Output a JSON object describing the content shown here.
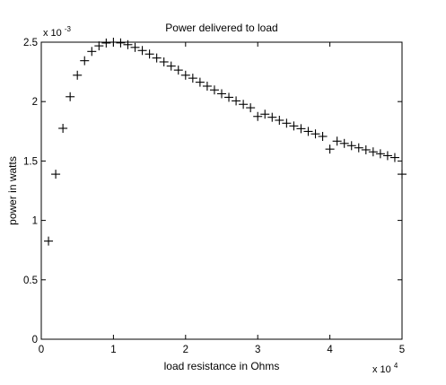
{
  "chart_data": {
    "type": "scatter",
    "title": "Power delivered to load",
    "xlabel": "load resistance in Ohms",
    "ylabel": "power in watts",
    "marker": "plus",
    "marker_color": "#000000",
    "grid": false,
    "legend": "none",
    "x_multiplier_base": "x 10",
    "x_multiplier_exp": "4",
    "y_multiplier_base": "x 10",
    "y_multiplier_exp": "-3",
    "xlim": [
      0,
      50000
    ],
    "ylim": [
      0,
      0.0025
    ],
    "xticks": [
      0,
      10000,
      20000,
      30000,
      40000,
      50000
    ],
    "xtick_labels": [
      "0",
      "1",
      "2",
      "3",
      "4",
      "5"
    ],
    "yticks": [
      0,
      0.0005,
      0.001,
      0.0015,
      0.002,
      0.0025
    ],
    "ytick_labels": [
      "0",
      "0.5",
      "1",
      "1.5",
      "2",
      "2.5"
    ],
    "series": [
      {
        "x": [
          1000,
          2000,
          3000,
          4000,
          5000,
          6000,
          7000,
          8000,
          9000,
          10000,
          11000,
          12000,
          13000,
          14000,
          15000,
          16000,
          17000,
          18000,
          19000,
          20000,
          21000,
          22000,
          23000,
          24000,
          25000,
          26000,
          27000,
          28000,
          29000,
          30000,
          31000,
          32000,
          33000,
          34000,
          35000,
          36000,
          37000,
          38000,
          39000,
          40000,
          41000,
          42000,
          43000,
          44000,
          45000,
          46000,
          47000,
          48000,
          49000,
          50000
        ],
        "y": [
          0.000826,
          0.001389,
          0.001775,
          0.002041,
          0.002222,
          0.002344,
          0.002422,
          0.002469,
          0.002493,
          0.0025,
          0.002494,
          0.002479,
          0.002456,
          0.00243,
          0.0024,
          0.002367,
          0.002334,
          0.002299,
          0.002265,
          0.002222,
          0.002197,
          0.002163,
          0.00213,
          0.002098,
          0.002066,
          0.002036,
          0.002006,
          0.001977,
          0.001948,
          0.001875,
          0.001894,
          0.001868,
          0.001843,
          0.001818,
          0.001795,
          0.001772,
          0.001749,
          0.001728,
          0.001707,
          0.0016,
          0.001667,
          0.001648,
          0.001629,
          0.001611,
          0.001594,
          0.001577,
          0.001561,
          0.001545,
          0.001529,
          0.001389
        ]
      }
    ]
  }
}
